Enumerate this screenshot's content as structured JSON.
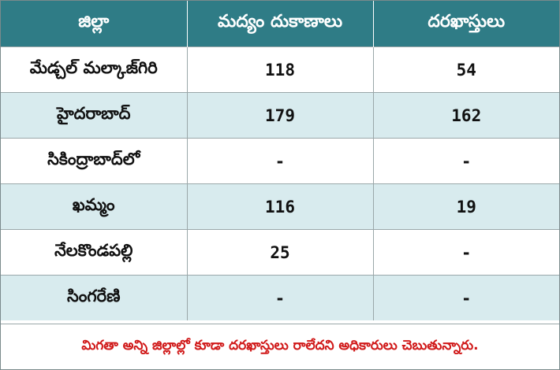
{
  "colors": {
    "header_bg": "#2f7c86",
    "alt_row_bg": "#d8ebee",
    "note_text": "#d01818"
  },
  "table": {
    "headers": [
      "జిల్లా",
      "మద్యం దుకాణాలు",
      "దరఖాస్తులు"
    ],
    "rows": [
      [
        "మేడ్చల్ మల్కాజ్‌గిరి",
        "118",
        "54"
      ],
      [
        "హైదరాబాద్",
        "179",
        "162"
      ],
      [
        "సికింద్రాబాద్‌లో",
        "-",
        "-"
      ],
      [
        "ఖమ్మం",
        "116",
        "19"
      ],
      [
        "నేలకొండపల్లి",
        "25",
        "-"
      ],
      [
        "సింగరేణి",
        "-",
        "-"
      ]
    ]
  },
  "footnote": "మిగతా అన్ని జిల్లాల్లో కూడా దరఖాస్తులు రాలేదని అధికారులు చెబుతున్నారు."
}
